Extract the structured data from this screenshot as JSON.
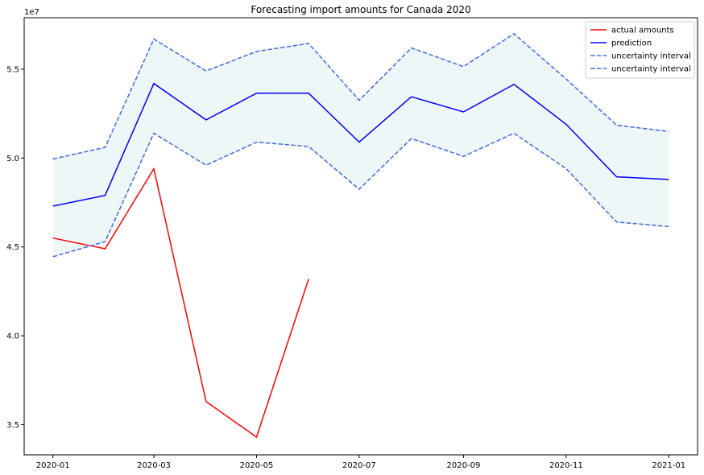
{
  "chart_data": {
    "type": "line",
    "title": "Forecasting import amounts for Canada 2020",
    "xlabel": "",
    "ylabel": "",
    "y_offset_label": "1e7",
    "x": [
      "2020-01-01",
      "2020-02-01",
      "2020-03-01",
      "2020-04-01",
      "2020-05-01",
      "2020-06-01",
      "2020-07-01",
      "2020-08-01",
      "2020-09-01",
      "2020-10-01",
      "2020-11-01",
      "2020-12-01",
      "2021-01-01"
    ],
    "x_tick_labels": [
      "2020-01",
      "2020-03",
      "2020-05",
      "2020-07",
      "2020-09",
      "2020-11",
      "2021-01"
    ],
    "x_tick_dates": [
      "2020-01-01",
      "2020-03-01",
      "2020-05-01",
      "2020-07-01",
      "2020-09-01",
      "2020-11-01",
      "2021-01-01"
    ],
    "y_ticks": [
      35000000,
      40000000,
      45000000,
      50000000,
      55000000
    ],
    "y_tick_labels": [
      "3.5",
      "4.0",
      "4.5",
      "5.0",
      "5.5"
    ],
    "ylim": [
      33300000,
      57900000
    ],
    "grid": false,
    "legend_position": "top-right",
    "series": [
      {
        "name": "actual amounts",
        "color": "#ff0000",
        "style": "solid",
        "values": [
          45500000,
          44900000,
          49400000,
          36300000,
          34300000,
          43200000,
          null,
          null,
          null,
          null,
          null,
          null,
          null
        ]
      },
      {
        "name": "prediction",
        "color": "#0000ff",
        "style": "solid",
        "values": [
          47300000,
          47900000,
          54200000,
          52150000,
          53650000,
          53650000,
          50900000,
          53450000,
          52600000,
          54150000,
          51900000,
          48950000,
          48800000
        ]
      },
      {
        "name": "uncertainty interval",
        "color": "#4169e1",
        "style": "dashed",
        "values": [
          49950000,
          50600000,
          56700000,
          54900000,
          56000000,
          56450000,
          53250000,
          56200000,
          55150000,
          57000000,
          54450000,
          51850000,
          51500000
        ]
      },
      {
        "name": "uncertainty interval",
        "color": "#4169e1",
        "style": "dashed",
        "values": [
          44450000,
          45300000,
          51400000,
          49600000,
          50900000,
          50650000,
          48250000,
          51100000,
          50100000,
          51400000,
          49400000,
          46400000,
          46150000
        ]
      }
    ],
    "band_fill_color": "#eef7f8"
  }
}
